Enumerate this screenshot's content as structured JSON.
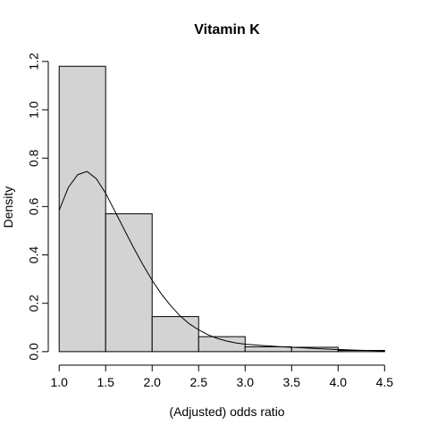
{
  "chart_data": {
    "type": "bar",
    "title": "Vitamin K",
    "xlabel": "(Adjusted) odds ratio",
    "ylabel": "Density",
    "bins": [
      {
        "x0": 1.0,
        "x1": 1.5,
        "density": 1.18
      },
      {
        "x0": 1.5,
        "x1": 2.0,
        "density": 0.57
      },
      {
        "x0": 2.0,
        "x1": 2.5,
        "density": 0.145
      },
      {
        "x0": 2.5,
        "x1": 3.0,
        "density": 0.062
      },
      {
        "x0": 3.0,
        "x1": 3.5,
        "density": 0.02
      },
      {
        "x0": 3.5,
        "x1": 4.0,
        "density": 0.018
      },
      {
        "x0": 4.0,
        "x1": 4.5,
        "density": 0.005
      }
    ],
    "density_curve": {
      "x": [
        1.0,
        1.1,
        1.2,
        1.3,
        1.4,
        1.5,
        1.6,
        1.7,
        1.8,
        1.9,
        2.0,
        2.1,
        2.2,
        2.3,
        2.4,
        2.5,
        2.6,
        2.7,
        2.8,
        2.9,
        3.0,
        3.2,
        3.4,
        3.6,
        3.8,
        4.0,
        4.2,
        4.4,
        4.5
      ],
      "y": [
        0.585,
        0.68,
        0.732,
        0.745,
        0.715,
        0.655,
        0.58,
        0.505,
        0.43,
        0.36,
        0.295,
        0.238,
        0.19,
        0.148,
        0.115,
        0.09,
        0.07,
        0.055,
        0.044,
        0.036,
        0.031,
        0.025,
        0.02,
        0.016,
        0.012,
        0.009,
        0.006,
        0.004,
        0.002
      ]
    },
    "xlim": [
      0.95,
      4.67
    ],
    "ylim": [
      -0.03,
      1.24
    ],
    "xticks": [
      "1.0",
      "1.5",
      "2.0",
      "2.5",
      "3.0",
      "3.5",
      "4.0",
      "4.5"
    ],
    "yticks": [
      "0.0",
      "0.2",
      "0.4",
      "0.6",
      "0.8",
      "1.0",
      "1.2"
    ],
    "grid": false,
    "bar_fill": "#d3d3d3",
    "bar_stroke": "#000000",
    "line_color": "#000000"
  }
}
